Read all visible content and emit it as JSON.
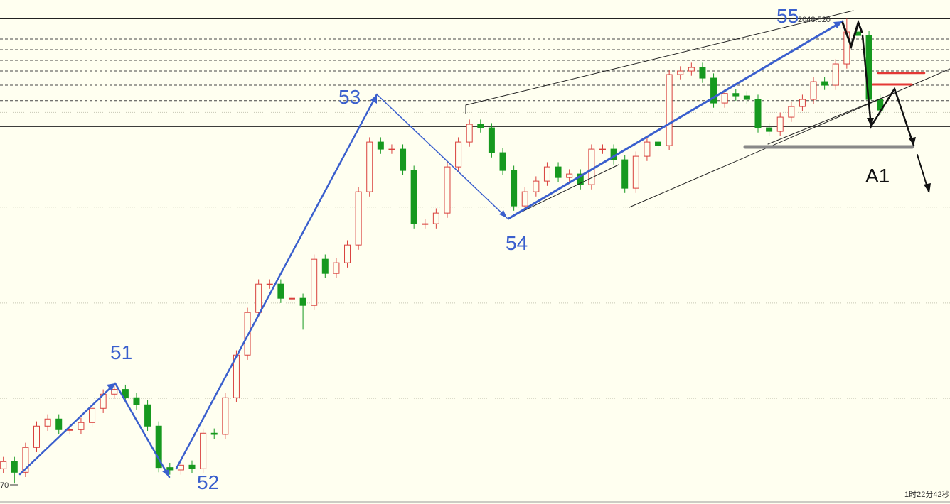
{
  "chart_data": {
    "type": "candlestick",
    "up_color": "#d9413d",
    "down_color": "#16991f",
    "xlim": [
      -0.3,
      85.3
    ],
    "ylim": [
      1966.9,
      2051.7
    ],
    "open": [
      1972.5,
      1973.7,
      1971.9,
      1976.1,
      1979.7,
      1980.9,
      1979.1,
      1979.1,
      1980.3,
      1982.7,
      1985.1,
      1985.9,
      1984.5,
      1983.3,
      1979.7,
      1972.7,
      1972.3,
      1973.1,
      1972.5,
      1978.5,
      1978.3,
      1984.5,
      1991.7,
      1998.9,
      2003.7,
      2003.7,
      2001.3,
      2001.3,
      2000.1,
      2007.9,
      2005.5,
      2007.3,
      2010.3,
      2019.3,
      2027.7,
      2026.5,
      2026.5,
      2022.9,
      2013.9,
      2013.9,
      2015.7,
      2023.5,
      2027.7,
      2030.7,
      2030.1,
      2025.9,
      2022.9,
      2016.9,
      2019.3,
      2021.1,
      2023.5,
      2021.7,
      2022.3,
      2020.5,
      2026.5,
      2026.5,
      2024.7,
      2019.9,
      2025.3,
      2027.7,
      2027.1,
      2039.1,
      2039.7,
      2040.3,
      2038.5,
      2034.3,
      2035.9,
      2035.5,
      2034.9,
      2030.1,
      2029.5,
      2031.9,
      2033.7,
      2034.9,
      2037.9,
      2037.3,
      2040.9,
      2046.3,
      2045.7,
      2034.9
    ],
    "high": [
      1974.5,
      1974.5,
      1976.9,
      1980.5,
      1981.7,
      1981.7,
      1979.9,
      1981.1,
      1983.5,
      1985.9,
      1986.7,
      1986.7,
      1985.3,
      1984.1,
      1980.5,
      1973.5,
      1973.9,
      1973.9,
      1979.3,
      1979.3,
      1985.3,
      1992.5,
      1999.7,
      2004.5,
      2004.5,
      2004.5,
      2002.1,
      2002.1,
      2008.7,
      2008.7,
      2008.1,
      2011.1,
      2020.1,
      2028.5,
      2028.5,
      2027.3,
      2027.3,
      2023.7,
      2014.7,
      2016.5,
      2024.3,
      2028.5,
      2031.5,
      2031.5,
      2030.9,
      2026.7,
      2023.7,
      2020.1,
      2021.9,
      2024.3,
      2024.3,
      2023.1,
      2023.1,
      2027.3,
      2027.3,
      2027.3,
      2025.5,
      2026.1,
      2028.5,
      2028.5,
      2039.9,
      2040.5,
      2041.1,
      2041.1,
      2039.3,
      2036.7,
      2036.7,
      2036.3,
      2035.7,
      2030.9,
      2032.7,
      2034.5,
      2035.7,
      2038.7,
      2038.7,
      2041.7,
      2048.52,
      2047.1,
      2046.5,
      2035.7
    ],
    "low": [
      1971.7,
      1970.0,
      1971.1,
      1975.3,
      1978.9,
      1978.3,
      1978.3,
      1978.3,
      1979.5,
      1981.9,
      1984.3,
      1983.7,
      1982.5,
      1978.9,
      1971.9,
      1971.5,
      1971.5,
      1971.7,
      1971.7,
      1977.5,
      1977.5,
      1983.7,
      1990.9,
      1998.1,
      2002.9,
      2000.5,
      2000.5,
      1996.0,
      1999.3,
      2004.7,
      2004.7,
      2006.5,
      2009.5,
      2018.5,
      2025.7,
      2025.7,
      2022.1,
      2013.1,
      2013.1,
      2013.1,
      2014.9,
      2022.7,
      2026.9,
      2029.3,
      2025.1,
      2022.1,
      2016.1,
      2016.1,
      2018.5,
      2020.3,
      2020.9,
      2020.9,
      2019.7,
      2019.7,
      2025.7,
      2023.9,
      2019.1,
      2019.1,
      2024.5,
      2026.3,
      2026.3,
      2038.3,
      2038.9,
      2037.7,
      2033.5,
      2033.5,
      2034.7,
      2034.1,
      2029.3,
      2028.7,
      2028.7,
      2031.1,
      2032.9,
      2034.1,
      2036.5,
      2036.5,
      2040.1,
      2044.9,
      2034.1,
      2032.3
    ],
    "close": [
      1973.7,
      1971.9,
      1976.1,
      1979.7,
      1980.9,
      1979.1,
      1979.1,
      1980.3,
      1982.7,
      1985.1,
      1985.9,
      1984.5,
      1983.3,
      1979.7,
      1972.7,
      1972.3,
      1973.1,
      1972.5,
      1978.5,
      1978.3,
      1984.5,
      1991.7,
      1998.9,
      2003.7,
      2003.7,
      2001.3,
      2001.3,
      2000.1,
      2007.9,
      2005.5,
      2007.3,
      2010.3,
      2019.3,
      2027.7,
      2026.5,
      2026.5,
      2022.9,
      2013.9,
      2013.9,
      2015.7,
      2023.5,
      2027.7,
      2030.7,
      2030.1,
      2025.9,
      2022.9,
      2016.9,
      2019.3,
      2021.1,
      2023.5,
      2021.7,
      2022.3,
      2020.5,
      2026.5,
      2026.5,
      2024.7,
      2019.9,
      2025.3,
      2027.7,
      2027.1,
      2039.1,
      2039.7,
      2040.3,
      2038.5,
      2034.3,
      2035.9,
      2035.5,
      2034.9,
      2030.1,
      2029.5,
      2031.9,
      2033.7,
      2034.9,
      2037.9,
      2037.3,
      2040.9,
      2046.3,
      2045.7,
      2034.9,
      2033.1
    ],
    "solid_levels": [
      2048.52,
      2030.3
    ],
    "dashed_levels": [
      2045.1,
      2043.3,
      2041.5,
      2039.7,
      2037.3,
      2034.7
    ],
    "dotted_levels": [
      2032.7,
      2016.7,
      2000.5,
      1984.4
    ],
    "high_label": "2048.520",
    "low_label": "70",
    "wave_labels": [
      "51",
      "52",
      "53",
      "54",
      "55",
      "A1"
    ],
    "timer": "1时22分42秒"
  }
}
